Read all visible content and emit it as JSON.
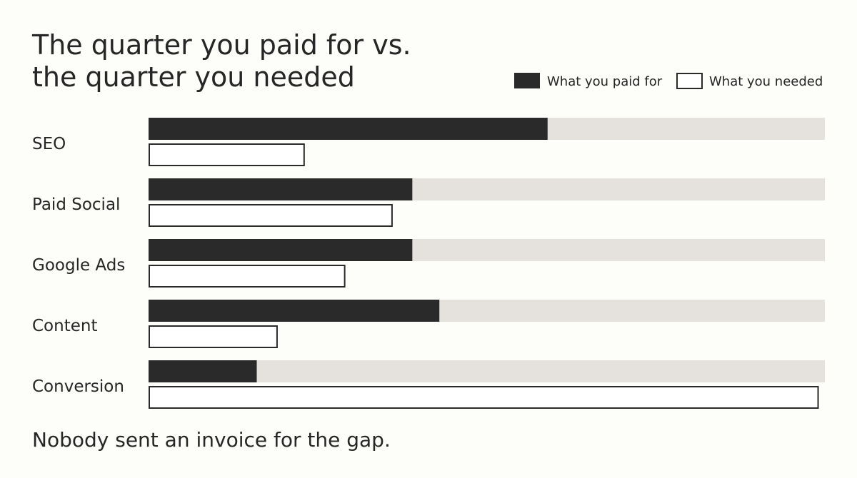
{
  "colors": {
    "paid": "#2a2a2a",
    "track": "#e5e2dd",
    "needed_fill": "#ffffff",
    "needed_stroke": "#2a2a2a",
    "text": "#262626",
    "background": "#fdfdfa"
  },
  "chart_data": {
    "type": "bar",
    "orientation": "horizontal",
    "title": [
      "The quarter you paid for vs.",
      "the quarter you needed"
    ],
    "legend_position": "top-right",
    "grid": false,
    "xlim": [
      0,
      100
    ],
    "categories": [
      "SEO",
      "Paid Social",
      "Google Ads",
      "Content",
      "Conversion"
    ],
    "series": [
      {
        "name": "What you paid for",
        "values": [
          59,
          39,
          39,
          43,
          16
        ],
        "style": "solid"
      },
      {
        "name": "What you needed",
        "values": [
          23,
          36,
          29,
          19,
          99
        ],
        "style": "outline"
      }
    ],
    "footer": "Nobody sent an invoice for the gap."
  }
}
